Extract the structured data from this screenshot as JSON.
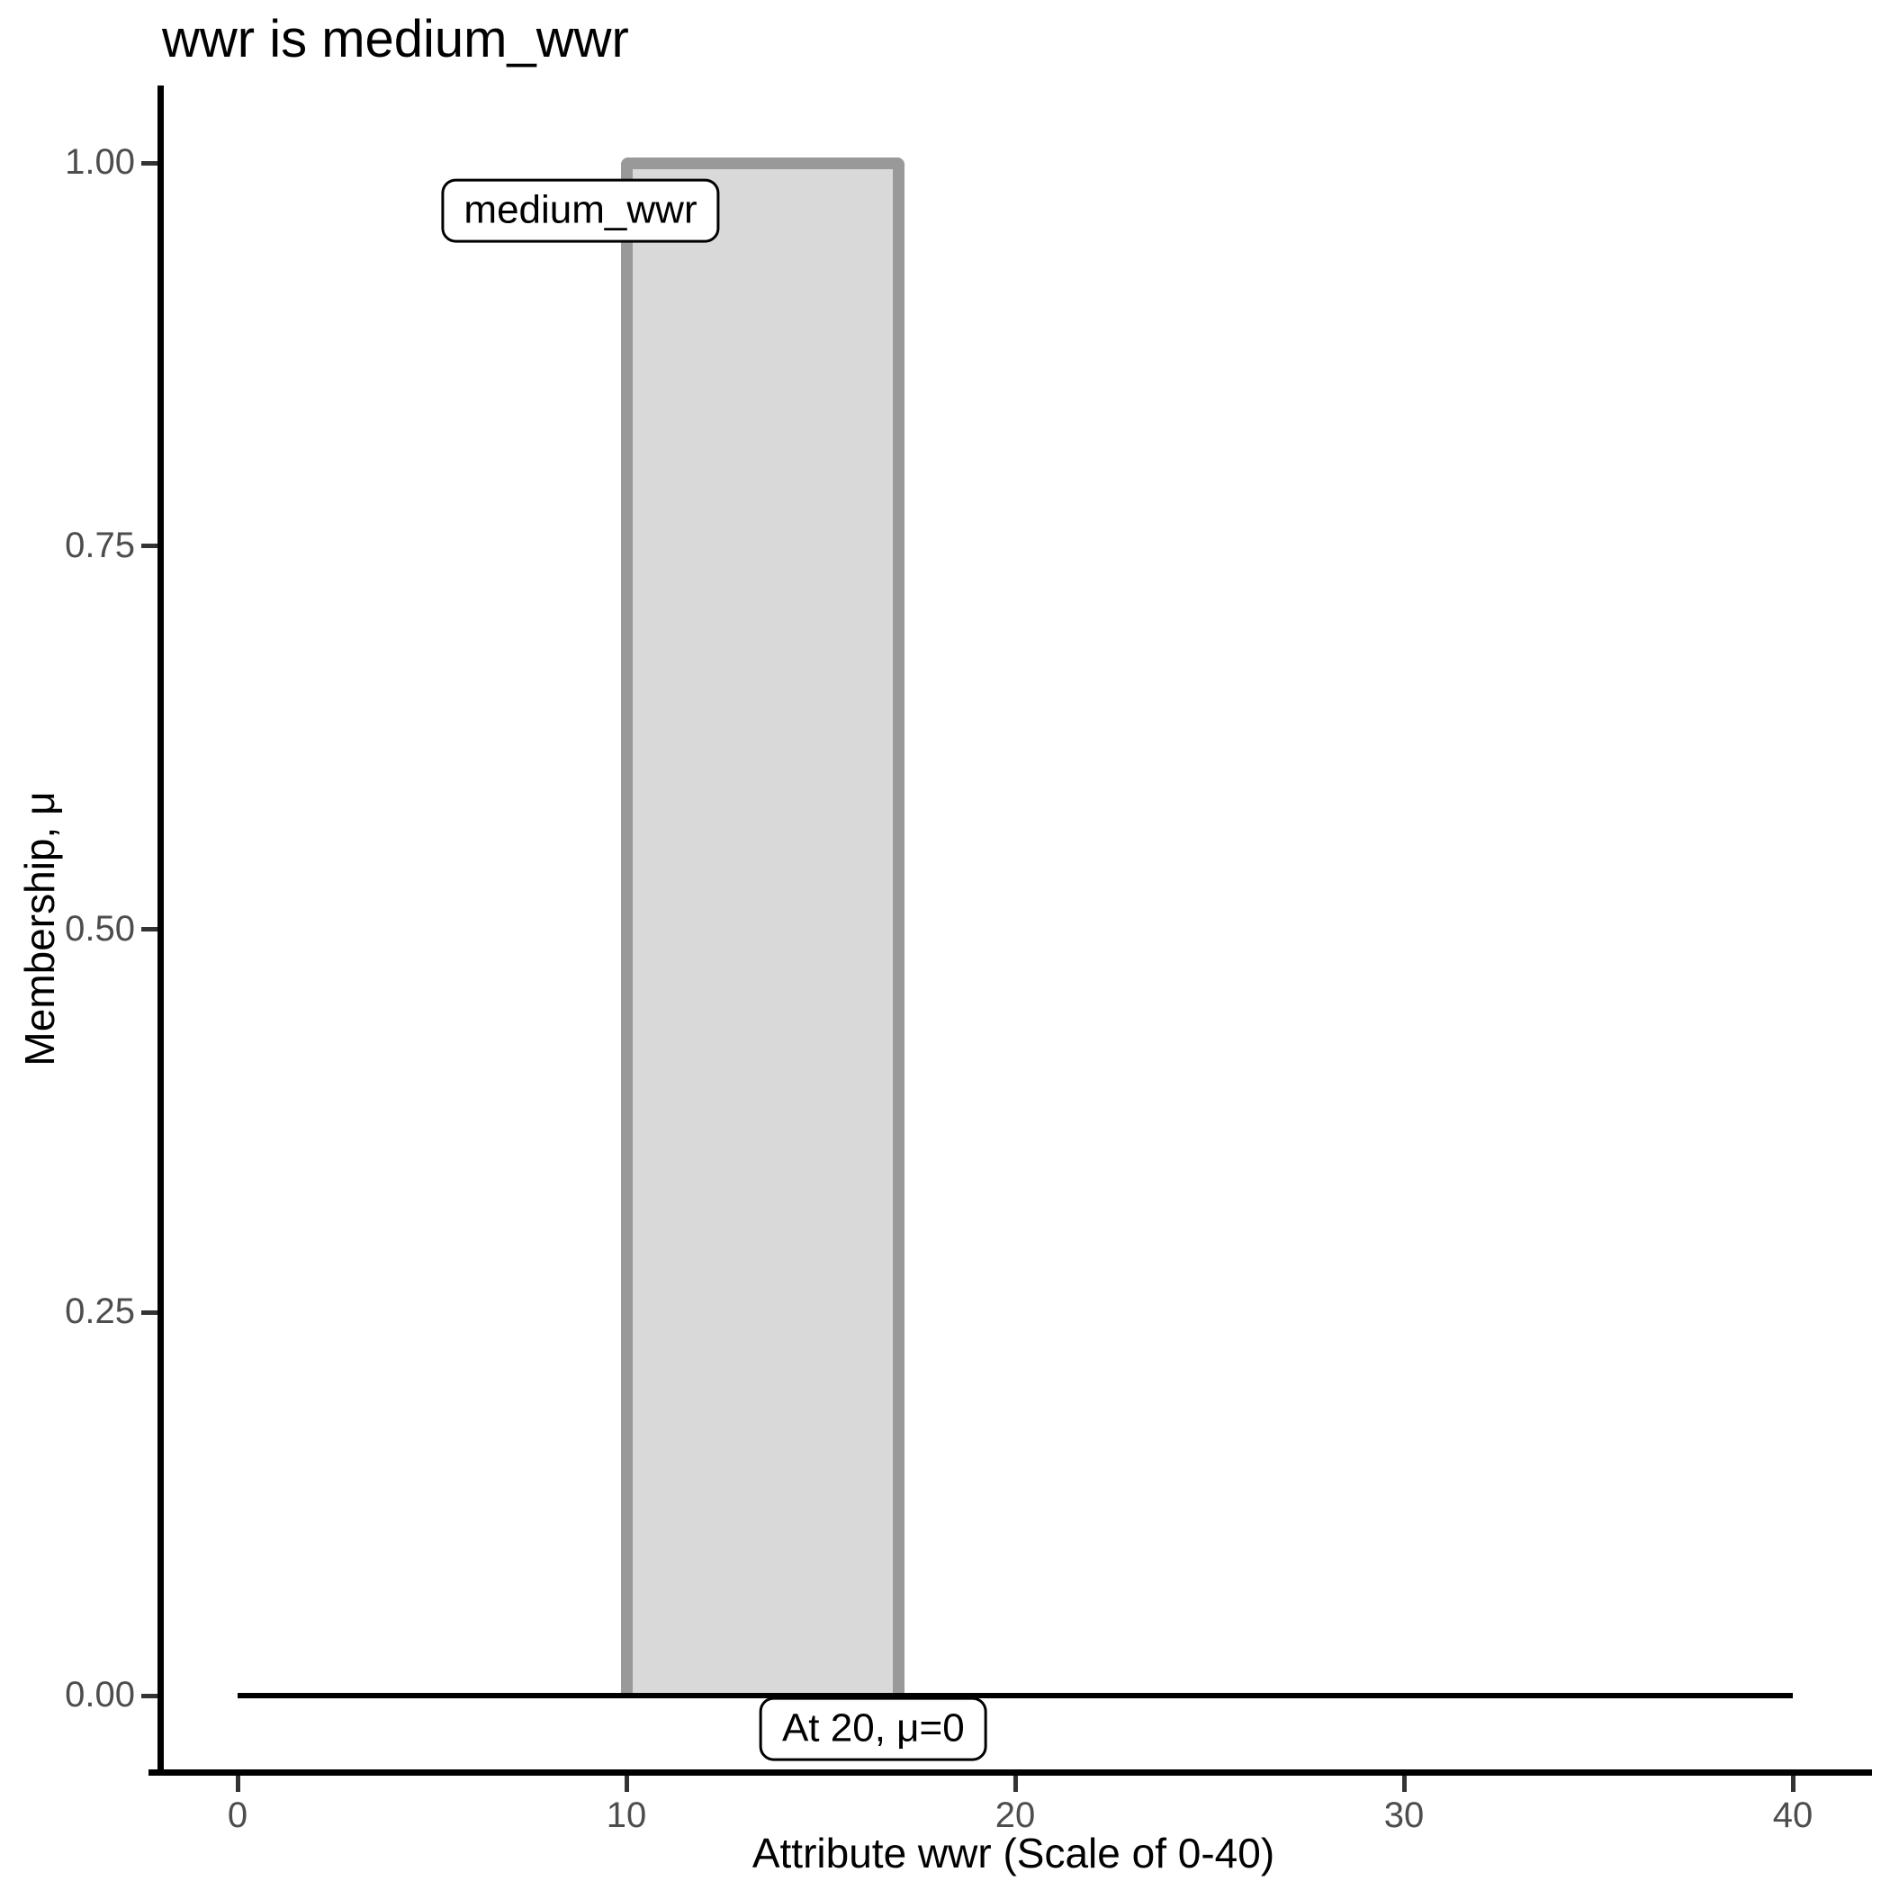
{
  "chart_data": {
    "type": "area",
    "subtype": "fuzzy-membership-function",
    "title": "wwr is medium_wwr",
    "xlabel": "Attribute wwr (Scale of 0-40)",
    "ylabel": "Membership, μ",
    "xlim": [
      0,
      40
    ],
    "ylim": [
      0,
      1
    ],
    "grid": false,
    "legend_position": "none",
    "x_ticks": [
      0,
      10,
      20,
      30,
      40
    ],
    "x_tick_labels": [
      "0",
      "10",
      "20",
      "30",
      "40"
    ],
    "y_ticks": [
      0,
      0.25,
      0.5,
      0.75,
      1
    ],
    "y_tick_labels": [
      "0.00",
      "0.25",
      "0.50",
      "0.75",
      "1.00"
    ],
    "series": [
      {
        "name": "medium_wwr",
        "x": [
          0,
          10,
          10,
          17,
          17,
          40
        ],
        "mu": [
          0,
          0,
          1,
          1,
          0,
          0
        ]
      }
    ],
    "set": {
      "name": "medium_wwr",
      "core_start": 10,
      "core_end": 17,
      "core_mu": 1
    },
    "baseline": {
      "x_start": 0,
      "x_end": 40,
      "mu": 0
    },
    "annotations": [
      {
        "text": "medium_wwr",
        "x": 8.82,
        "mu": 0.969
      },
      {
        "text": "At 20, μ=0",
        "x": 16.35,
        "mu": -0.022
      }
    ],
    "colors": {
      "fill": "#d9d9d9",
      "stroke": "#999999",
      "baseline": "#000000",
      "axis": "#000000",
      "tick": "#333333",
      "tick_label": "#4d4d4d",
      "text": "#000000",
      "annotation_bg": "#ffffff",
      "annotation_border": "#000000"
    }
  }
}
